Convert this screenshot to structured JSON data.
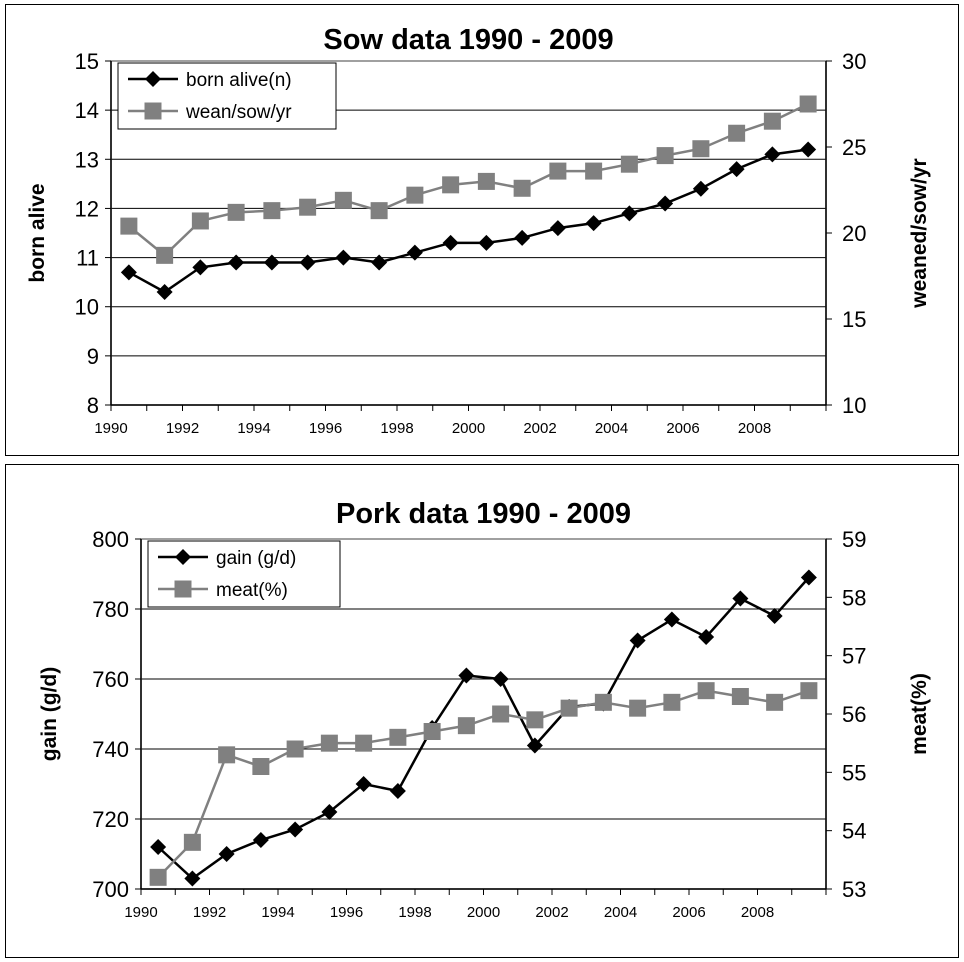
{
  "chart_data": [
    {
      "type": "line",
      "title": "Sow data 1990 - 2009",
      "ylabel": "born alive",
      "y2label": "weaned/sow/yr",
      "x": [
        1990,
        1991,
        1992,
        1993,
        1994,
        1995,
        1996,
        1997,
        1998,
        1999,
        2000,
        2001,
        2002,
        2003,
        2004,
        2005,
        2006,
        2007,
        2008,
        2009
      ],
      "xticks": [
        "1990",
        "1992",
        "1994",
        "1996",
        "1998",
        "2000",
        "2002",
        "2004",
        "2006",
        "2008"
      ],
      "ylim": [
        8,
        15
      ],
      "yticks": [
        "8",
        "9",
        "10",
        "11",
        "12",
        "13",
        "14",
        "15"
      ],
      "y2lim": [
        10,
        30
      ],
      "y2ticks": [
        "10",
        "15",
        "20",
        "25",
        "30"
      ],
      "grid": true,
      "legend": "top-left",
      "series": [
        {
          "name": "born alive(n)",
          "axis": "left",
          "marker": "diamond",
          "color": "#000000",
          "values": [
            10.7,
            10.3,
            10.8,
            10.9,
            10.9,
            10.9,
            11.0,
            10.9,
            11.1,
            11.3,
            11.3,
            11.4,
            11.6,
            11.7,
            11.9,
            12.1,
            12.4,
            12.8,
            13.1,
            13.2
          ]
        },
        {
          "name": "wean/sow/yr",
          "axis": "right",
          "marker": "square",
          "color": "#808080",
          "values": [
            20.4,
            18.7,
            20.7,
            21.2,
            21.3,
            21.5,
            21.9,
            21.3,
            22.2,
            22.8,
            23.0,
            22.6,
            23.6,
            23.6,
            24.0,
            24.5,
            24.9,
            25.8,
            26.5,
            27.5
          ]
        }
      ]
    },
    {
      "type": "line",
      "title": "Pork data 1990 - 2009",
      "ylabel": "gain (g/d)",
      "y2label": "meat(%)",
      "x": [
        1990,
        1991,
        1992,
        1993,
        1994,
        1995,
        1996,
        1997,
        1998,
        1999,
        2000,
        2001,
        2002,
        2003,
        2004,
        2005,
        2006,
        2007,
        2008,
        2009
      ],
      "xticks": [
        "1990",
        "1992",
        "1994",
        "1996",
        "1998",
        "2000",
        "2002",
        "2004",
        "2006",
        "2008"
      ],
      "ylim": [
        700,
        800
      ],
      "yticks": [
        "700",
        "720",
        "740",
        "760",
        "780",
        "800"
      ],
      "y2lim": [
        53,
        59
      ],
      "y2ticks": [
        "53",
        "54",
        "55",
        "56",
        "57",
        "58",
        "59"
      ],
      "grid": true,
      "legend": "top-left",
      "series": [
        {
          "name": "gain (g/d)",
          "axis": "left",
          "marker": "diamond",
          "color": "#000000",
          "values": [
            712,
            703,
            710,
            714,
            717,
            722,
            730,
            728,
            746,
            761,
            760,
            741,
            752,
            753,
            771,
            777,
            772,
            783,
            778,
            789
          ]
        },
        {
          "name": "meat(%)",
          "axis": "right",
          "marker": "square",
          "color": "#808080",
          "values": [
            53.2,
            53.8,
            55.3,
            55.1,
            55.4,
            55.5,
            55.5,
            55.6,
            55.7,
            55.8,
            56.0,
            55.9,
            56.1,
            56.2,
            56.1,
            56.2,
            56.4,
            56.3,
            56.2,
            56.4
          ]
        }
      ]
    }
  ]
}
